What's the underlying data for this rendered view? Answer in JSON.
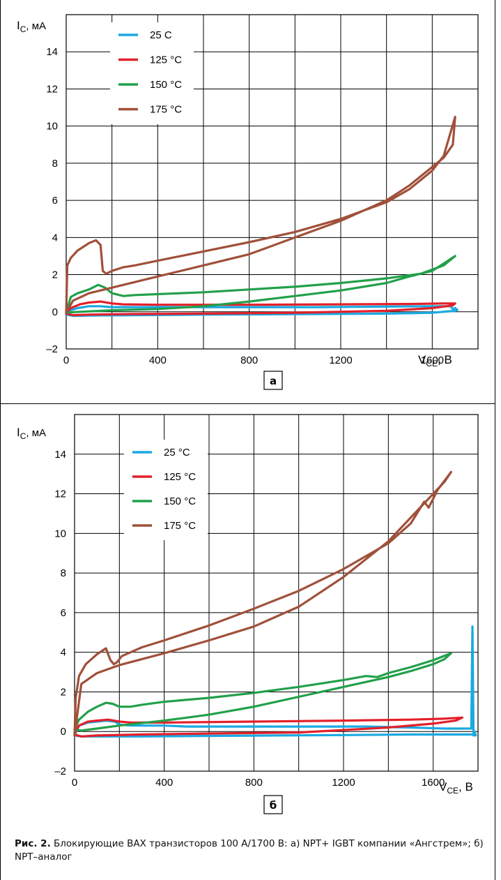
{
  "chart_data": [
    {
      "type": "line",
      "panel_label": "а",
      "ylabel": "I",
      "ylabel_sub": "C",
      "ylabel_unit": ", мА",
      "xlabel": "V",
      "xlabel_sub": "CE",
      "xlabel_unit": ", В",
      "xlim": [
        0,
        1800
      ],
      "ylim": [
        -2,
        16
      ],
      "xticks": [
        0,
        400,
        800,
        1200,
        1600
      ],
      "yticks": [
        -2,
        0,
        2,
        4,
        6,
        8,
        10,
        12,
        14
      ],
      "xtick_labels": [
        "0",
        "400",
        "800",
        "1200",
        "1600"
      ],
      "ytick_labels": [
        "–2",
        "0",
        "2",
        "4",
        "6",
        "8",
        "10",
        "12",
        "14"
      ],
      "grid": true,
      "legend_position": "top-left",
      "series": [
        {
          "name": "25 С",
          "color": "#1ba9e1",
          "x": [
            0,
            10,
            50,
            100,
            150,
            200,
            300,
            500,
            800,
            1100,
            1400,
            1600,
            1680,
            1690,
            1700,
            1710,
            1700,
            1600,
            1400,
            1000,
            600,
            300,
            100,
            30,
            0
          ],
          "y": [
            -0.15,
            0.05,
            0.2,
            0.3,
            0.3,
            0.25,
            0.25,
            0.25,
            0.25,
            0.25,
            0.28,
            0.3,
            0.3,
            0.15,
            0.2,
            0.1,
            0.05,
            -0.05,
            -0.1,
            -0.13,
            -0.15,
            -0.18,
            -0.2,
            -0.22,
            -0.15
          ]
        },
        {
          "name": "125 °С",
          "color": "#e3202a",
          "x": [
            0,
            20,
            60,
            100,
            150,
            200,
            250,
            400,
            800,
            1200,
            1500,
            1650,
            1700,
            1690,
            1600,
            1400,
            1000,
            600,
            300,
            100,
            30,
            0
          ],
          "y": [
            -0.1,
            0.2,
            0.4,
            0.5,
            0.55,
            0.45,
            0.4,
            0.38,
            0.38,
            0.4,
            0.42,
            0.45,
            0.45,
            0.35,
            0.2,
            0.05,
            -0.05,
            -0.1,
            -0.12,
            -0.15,
            -0.18,
            -0.1
          ]
        },
        {
          "name": "150 °С",
          "color": "#22a04a",
          "x": [
            0,
            20,
            50,
            100,
            140,
            170,
            200,
            250,
            300,
            400,
            600,
            800,
            1000,
            1200,
            1400,
            1550,
            1650,
            1700,
            1650,
            1600,
            1500,
            1400,
            1200,
            1000,
            800,
            600,
            400,
            200,
            100,
            30,
            0
          ],
          "y": [
            -0.05,
            0.8,
            1.0,
            1.2,
            1.45,
            1.3,
            1.0,
            0.85,
            0.9,
            0.95,
            1.05,
            1.2,
            1.35,
            1.55,
            1.8,
            2.05,
            2.5,
            3.0,
            2.6,
            2.2,
            1.9,
            1.55,
            1.15,
            0.85,
            0.55,
            0.3,
            0.15,
            0.08,
            0.02,
            -0.02,
            -0.05
          ]
        },
        {
          "name": "175 °С",
          "color": "#a0503a",
          "x": [
            0,
            5,
            20,
            50,
            100,
            130,
            150,
            160,
            175,
            200,
            250,
            300,
            400,
            600,
            800,
            1000,
            1200,
            1400,
            1500,
            1600,
            1650,
            1700,
            1690,
            1650,
            1600,
            1500,
            1400,
            1200,
            1000,
            800,
            600,
            400,
            200,
            100,
            30,
            0
          ],
          "y": [
            -0.05,
            2.5,
            2.9,
            3.3,
            3.7,
            3.85,
            3.6,
            2.2,
            2.05,
            2.2,
            2.4,
            2.5,
            2.75,
            3.25,
            3.75,
            4.3,
            5.0,
            5.9,
            6.6,
            7.6,
            8.4,
            10.5,
            9.0,
            8.3,
            7.8,
            6.8,
            6.0,
            4.9,
            4.0,
            3.1,
            2.5,
            1.9,
            1.3,
            1.0,
            0.6,
            -0.05
          ]
        }
      ]
    },
    {
      "type": "line",
      "panel_label": "б",
      "ylabel": "I",
      "ylabel_sub": "C",
      "ylabel_unit": ", мА",
      "xlabel": "V",
      "xlabel_sub": "CE",
      "xlabel_unit": ", В",
      "xlim": [
        0,
        1800
      ],
      "ylim": [
        -2,
        16
      ],
      "xticks": [
        0,
        400,
        800,
        1200,
        1600
      ],
      "yticks": [
        -2,
        0,
        2,
        4,
        6,
        8,
        10,
        12,
        14
      ],
      "xtick_labels": [
        "0",
        "400",
        "800",
        "1200",
        "1600"
      ],
      "ytick_labels": [
        "–2",
        "0",
        "2",
        "4",
        "6",
        "8",
        "10",
        "12",
        "14"
      ],
      "grid": true,
      "legend_position": "top-center",
      "series": [
        {
          "name": "25 °С",
          "color": "#1ba9e1",
          "x": [
            0,
            20,
            60,
            100,
            140,
            180,
            200,
            250,
            300,
            400,
            500,
            700,
            900,
            1100,
            1300,
            1500,
            1650,
            1770,
            1775,
            1780,
            1785,
            1790,
            1780,
            1700,
            1500,
            1200,
            900,
            600,
            300,
            100,
            30,
            0
          ],
          "y": [
            -0.2,
            0.3,
            0.45,
            0.5,
            0.55,
            0.5,
            0.35,
            0.3,
            0.3,
            0.3,
            0.25,
            0.25,
            0.25,
            0.25,
            0.25,
            0.2,
            0.15,
            0.15,
            5.3,
            -0.2,
            0.0,
            -0.2,
            -0.15,
            -0.15,
            -0.15,
            -0.18,
            -0.2,
            -0.22,
            -0.25,
            -0.25,
            -0.25,
            -0.2
          ]
        },
        {
          "name": "125 °С",
          "color": "#e3202a",
          "x": [
            0,
            20,
            60,
            100,
            150,
            200,
            250,
            400,
            800,
            1200,
            1500,
            1650,
            1730,
            1700,
            1600,
            1400,
            1000,
            600,
            300,
            100,
            30,
            0
          ],
          "y": [
            -0.1,
            0.3,
            0.5,
            0.55,
            0.6,
            0.5,
            0.45,
            0.45,
            0.5,
            0.55,
            0.6,
            0.65,
            0.7,
            0.55,
            0.4,
            0.2,
            -0.05,
            -0.1,
            -0.15,
            -0.2,
            -0.25,
            -0.15
          ]
        },
        {
          "name": "150 °С",
          "color": "#22a04a",
          "x": [
            0,
            20,
            60,
            100,
            140,
            170,
            200,
            250,
            300,
            400,
            600,
            800,
            1000,
            1200,
            1300,
            1350,
            1400,
            1500,
            1600,
            1680,
            1650,
            1600,
            1500,
            1400,
            1200,
            1000,
            800,
            600,
            400,
            200,
            100,
            30,
            0
          ],
          "y": [
            0.1,
            0.6,
            1.0,
            1.25,
            1.45,
            1.4,
            1.25,
            1.25,
            1.35,
            1.5,
            1.7,
            1.95,
            2.25,
            2.6,
            2.8,
            2.75,
            2.95,
            3.25,
            3.6,
            3.95,
            3.65,
            3.4,
            3.05,
            2.75,
            2.25,
            1.75,
            1.25,
            0.85,
            0.55,
            0.3,
            0.15,
            0.05,
            0.1
          ]
        },
        {
          "name": "175 °С",
          "color": "#a0503a",
          "x": [
            0,
            5,
            20,
            50,
            100,
            140,
            160,
            175,
            190,
            210,
            250,
            300,
            400,
            600,
            800,
            1000,
            1200,
            1400,
            1500,
            1560,
            1580,
            1620,
            1680,
            1650,
            1600,
            1500,
            1400,
            1200,
            1000,
            800,
            600,
            400,
            200,
            100,
            30,
            0
          ],
          "y": [
            -0.2,
            1.7,
            2.8,
            3.4,
            3.9,
            4.2,
            3.6,
            3.4,
            3.5,
            3.8,
            4.0,
            4.25,
            4.6,
            5.35,
            6.2,
            7.1,
            8.2,
            9.5,
            10.5,
            11.6,
            11.3,
            12.2,
            13.1,
            12.6,
            12.0,
            10.8,
            9.6,
            7.8,
            6.3,
            5.3,
            4.6,
            3.95,
            3.35,
            2.95,
            2.4,
            -0.2
          ]
        }
      ]
    }
  ],
  "caption": {
    "bold": "Рис. 2.",
    "text": " Блокирующие ВАХ транзисторов 100 А/1700 В: а) NPT+ IGBT компании «Ангстрем»; б) NPT–аналог"
  }
}
